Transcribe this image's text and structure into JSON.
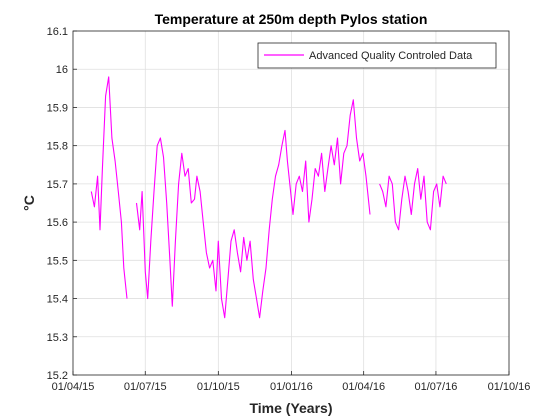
{
  "chart_data": {
    "type": "line",
    "title": "Temperature at 250m depth Pylos station",
    "xlabel": "Time (Years)",
    "ylabel": "°C",
    "x_ticks": [
      "01/04/15",
      "01/07/15",
      "01/10/15",
      "01/01/16",
      "01/04/16",
      "01/07/16",
      "01/10/16"
    ],
    "y_ticks": [
      "15.2",
      "15.3",
      "15.4",
      "15.5",
      "15.6",
      "15.7",
      "15.8",
      "15.9",
      "16",
      "16.1"
    ],
    "xlim": [
      "2015-04-01",
      "2016-10-01"
    ],
    "ylim": [
      15.2,
      16.1
    ],
    "grid": true,
    "legend_position": "top-right",
    "series": [
      {
        "name": "Advanced Quality Controled Data",
        "color": "#ff00ff",
        "x": [
          "2015-04-24",
          "2015-04-28",
          "2015-05-02",
          "2015-05-05",
          "2015-05-08",
          "2015-05-12",
          "2015-05-16",
          "2015-05-20",
          "2015-05-24",
          "2015-05-28",
          "2015-06-01",
          "2015-06-04",
          "2015-06-08",
          "2015-06-20",
          "2015-06-24",
          "2015-06-27",
          "2015-07-01",
          "2015-07-04",
          "2015-07-08",
          "2015-07-12",
          "2015-07-16",
          "2015-07-20",
          "2015-07-24",
          "2015-07-28",
          "2015-08-01",
          "2015-08-04",
          "2015-08-08",
          "2015-08-12",
          "2015-08-16",
          "2015-08-20",
          "2015-08-24",
          "2015-08-28",
          "2015-09-01",
          "2015-09-04",
          "2015-09-08",
          "2015-09-12",
          "2015-09-16",
          "2015-09-20",
          "2015-09-24",
          "2015-09-28",
          "2015-10-01",
          "2015-10-05",
          "2015-10-09",
          "2015-10-13",
          "2015-10-17",
          "2015-10-21",
          "2015-10-25",
          "2015-10-29",
          "2015-11-02",
          "2015-11-06",
          "2015-11-10",
          "2015-11-14",
          "2015-11-18",
          "2015-11-22",
          "2015-11-26",
          "2015-11-30",
          "2015-12-04",
          "2015-12-08",
          "2015-12-12",
          "2015-12-16",
          "2015-12-20",
          "2015-12-24",
          "2015-12-27",
          "2015-12-30",
          "2016-01-03",
          "2016-01-07",
          "2016-01-11",
          "2016-01-15",
          "2016-01-19",
          "2016-01-23",
          "2016-01-27",
          "2016-01-31",
          "2016-02-04",
          "2016-02-08",
          "2016-02-12",
          "2016-02-16",
          "2016-02-20",
          "2016-02-24",
          "2016-02-28",
          "2016-03-03",
          "2016-03-07",
          "2016-03-11",
          "2016-03-15",
          "2016-03-19",
          "2016-03-23",
          "2016-03-27",
          "2016-03-31",
          "2016-04-04",
          "2016-04-09",
          "2016-04-21",
          "2016-04-25",
          "2016-04-29",
          "2016-05-03",
          "2016-05-07",
          "2016-05-11",
          "2016-05-15",
          "2016-05-19",
          "2016-05-23",
          "2016-05-27",
          "2016-05-31",
          "2016-06-04",
          "2016-06-08",
          "2016-06-12",
          "2016-06-16",
          "2016-06-20",
          "2016-06-24",
          "2016-06-28",
          "2016-07-02",
          "2016-07-06",
          "2016-07-10",
          "2016-07-14"
        ],
        "y": [
          15.68,
          15.64,
          15.72,
          15.58,
          15.74,
          15.93,
          15.98,
          15.82,
          15.76,
          15.68,
          15.6,
          15.48,
          15.4,
          15.65,
          15.58,
          15.68,
          15.47,
          15.4,
          15.55,
          15.68,
          15.8,
          15.82,
          15.77,
          15.65,
          15.5,
          15.38,
          15.55,
          15.7,
          15.78,
          15.72,
          15.74,
          15.65,
          15.66,
          15.72,
          15.68,
          15.6,
          15.52,
          15.48,
          15.5,
          15.42,
          15.55,
          15.4,
          15.35,
          15.45,
          15.55,
          15.58,
          15.52,
          15.47,
          15.56,
          15.5,
          15.55,
          15.45,
          15.4,
          15.35,
          15.42,
          15.48,
          15.58,
          15.66,
          15.72,
          15.75,
          15.8,
          15.84,
          15.76,
          15.7,
          15.62,
          15.7,
          15.72,
          15.68,
          15.76,
          15.6,
          15.66,
          15.74,
          15.72,
          15.78,
          15.68,
          15.74,
          15.8,
          15.75,
          15.82,
          15.7,
          15.78,
          15.8,
          15.88,
          15.92,
          15.82,
          15.76,
          15.78,
          15.72,
          15.62,
          15.7,
          15.68,
          15.64,
          15.72,
          15.7,
          15.6,
          15.58,
          15.66,
          15.72,
          15.68,
          15.62,
          15.7,
          15.74,
          15.66,
          15.72,
          15.6,
          15.58,
          15.68,
          15.7,
          15.64,
          15.72,
          15.7
        ]
      }
    ]
  }
}
